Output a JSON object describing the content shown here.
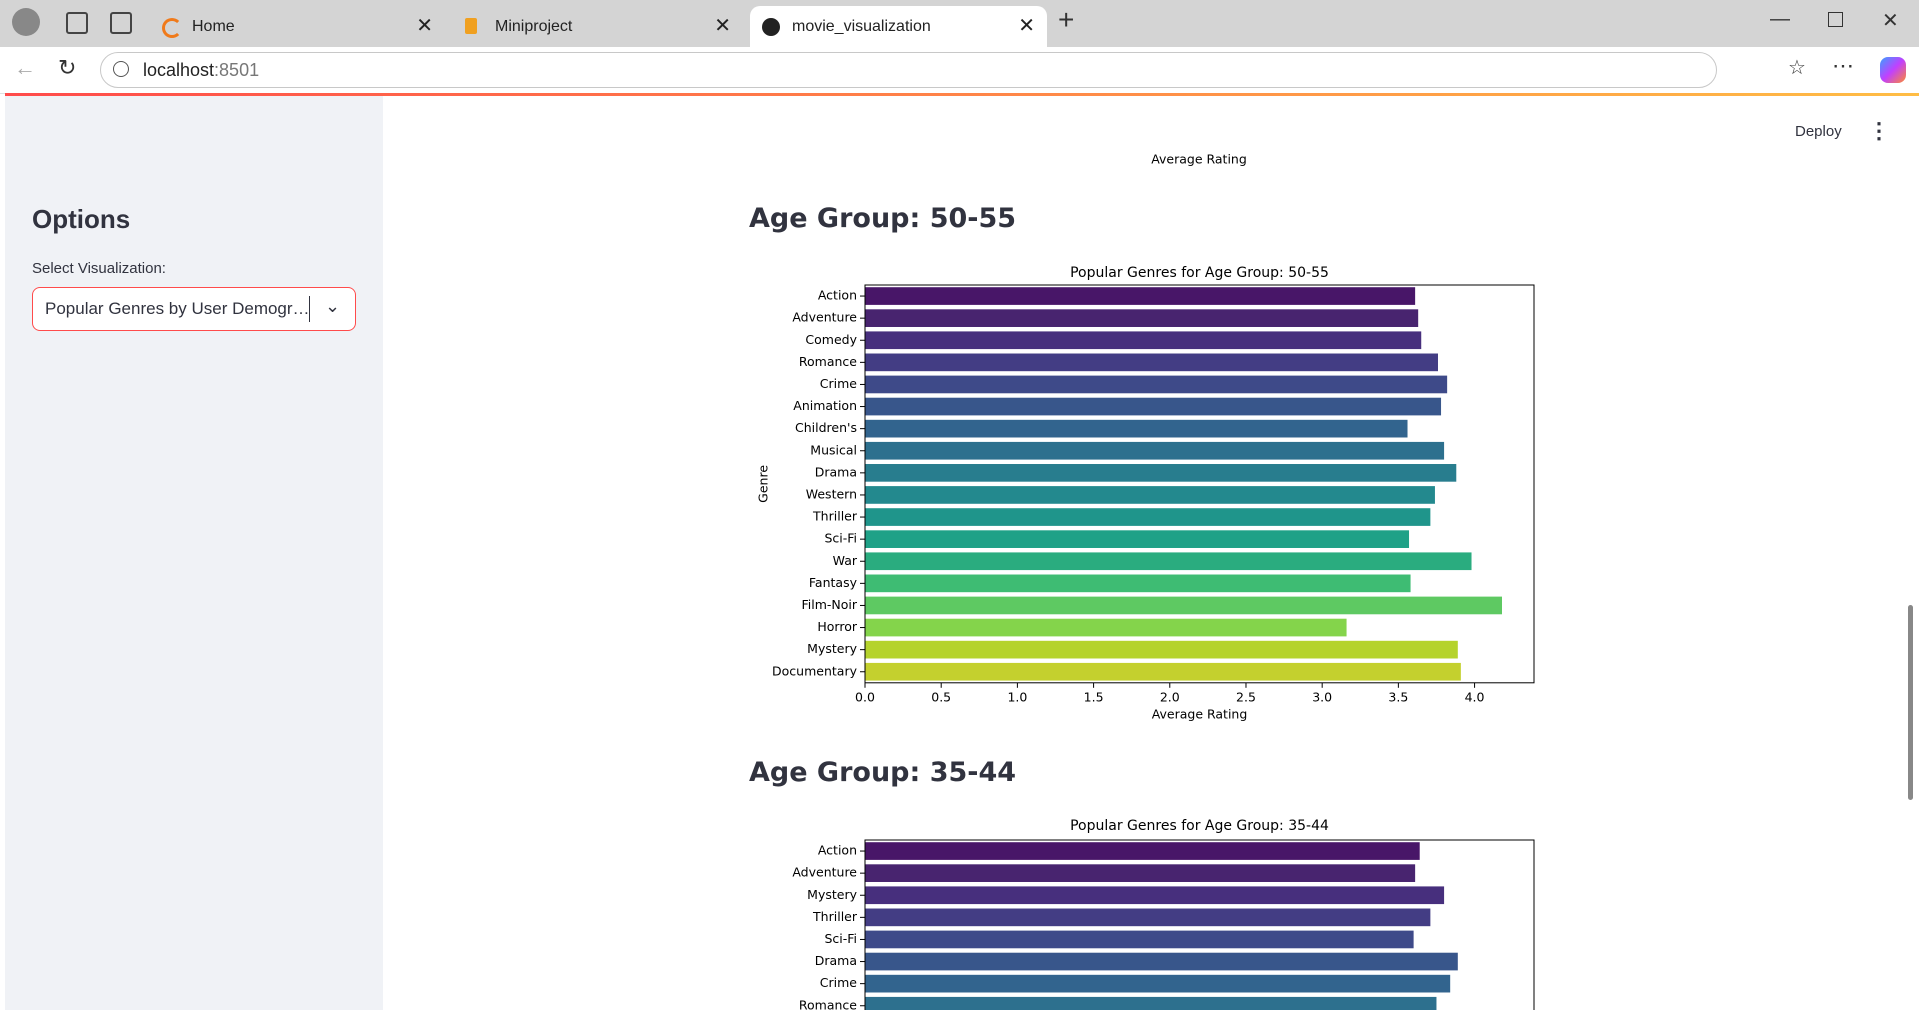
{
  "browser": {
    "tabs": [
      "Home",
      "Miniproject",
      "movie_visualization"
    ],
    "url_host": "localhost",
    "url_port": ":8501"
  },
  "header": {
    "deploy": "Deploy"
  },
  "sidebar": {
    "title": "Options",
    "select_label": "Select Visualization:",
    "select_value": "Popular Genres by User Demogr…"
  },
  "main": {
    "previous_axis_label": "Average Rating",
    "headings": [
      "Age Group: 50-55",
      "Age Group: 35-44"
    ]
  },
  "chart_data": [
    {
      "type": "barh",
      "title": "Popular Genres for Age Group: 50-55",
      "categories": [
        "Action",
        "Adventure",
        "Comedy",
        "Romance",
        "Crime",
        "Animation",
        "Children's",
        "Musical",
        "Drama",
        "Western",
        "Thriller",
        "Sci-Fi",
        "War",
        "Fantasy",
        "Film-Noir",
        "Horror",
        "Mystery",
        "Documentary"
      ],
      "values": [
        3.61,
        3.63,
        3.65,
        3.76,
        3.82,
        3.78,
        3.56,
        3.8,
        3.88,
        3.74,
        3.71,
        3.57,
        3.98,
        3.58,
        4.18,
        3.16,
        3.89,
        3.91
      ],
      "colors": [
        "#481668",
        "#48246f",
        "#472f7d",
        "#433d84",
        "#3e4a89",
        "#38568b",
        "#32648e",
        "#2d708e",
        "#287d8e",
        "#23898e",
        "#1f958b",
        "#1fa187",
        "#2aac7f",
        "#3ebc73",
        "#5ec962",
        "#84d44b",
        "#b5d32c",
        "#c4d02e"
      ],
      "xlim": [
        0,
        4.39
      ],
      "xticks": [
        {
          "value": 0,
          "label": "0.0"
        },
        {
          "value": 0.5,
          "label": "0.5"
        },
        {
          "value": 1,
          "label": "1.0"
        },
        {
          "value": 1.5,
          "label": "1.5"
        },
        {
          "value": 2,
          "label": "2.0"
        },
        {
          "value": 2.5,
          "label": "2.5"
        },
        {
          "value": 3,
          "label": "3.0"
        },
        {
          "value": 3.5,
          "label": "3.5"
        },
        {
          "value": 4,
          "label": "4.0"
        }
      ],
      "xlabel": "Average Rating",
      "ylabel": "Genre"
    },
    {
      "type": "barh",
      "title": "Popular Genres for Age Group: 35-44",
      "categories": [
        "Action",
        "Adventure",
        "Mystery",
        "Thriller",
        "Sci-Fi",
        "Drama",
        "Crime",
        "Romance"
      ],
      "values": [
        3.64,
        3.61,
        3.8,
        3.71,
        3.6,
        3.89,
        3.84,
        3.75
      ],
      "colors": [
        "#481668",
        "#48246f",
        "#472f7d",
        "#433d84",
        "#3e4a89",
        "#38568b",
        "#32648e",
        "#2d708e"
      ],
      "xlim": [
        0,
        4.39
      ]
    }
  ]
}
